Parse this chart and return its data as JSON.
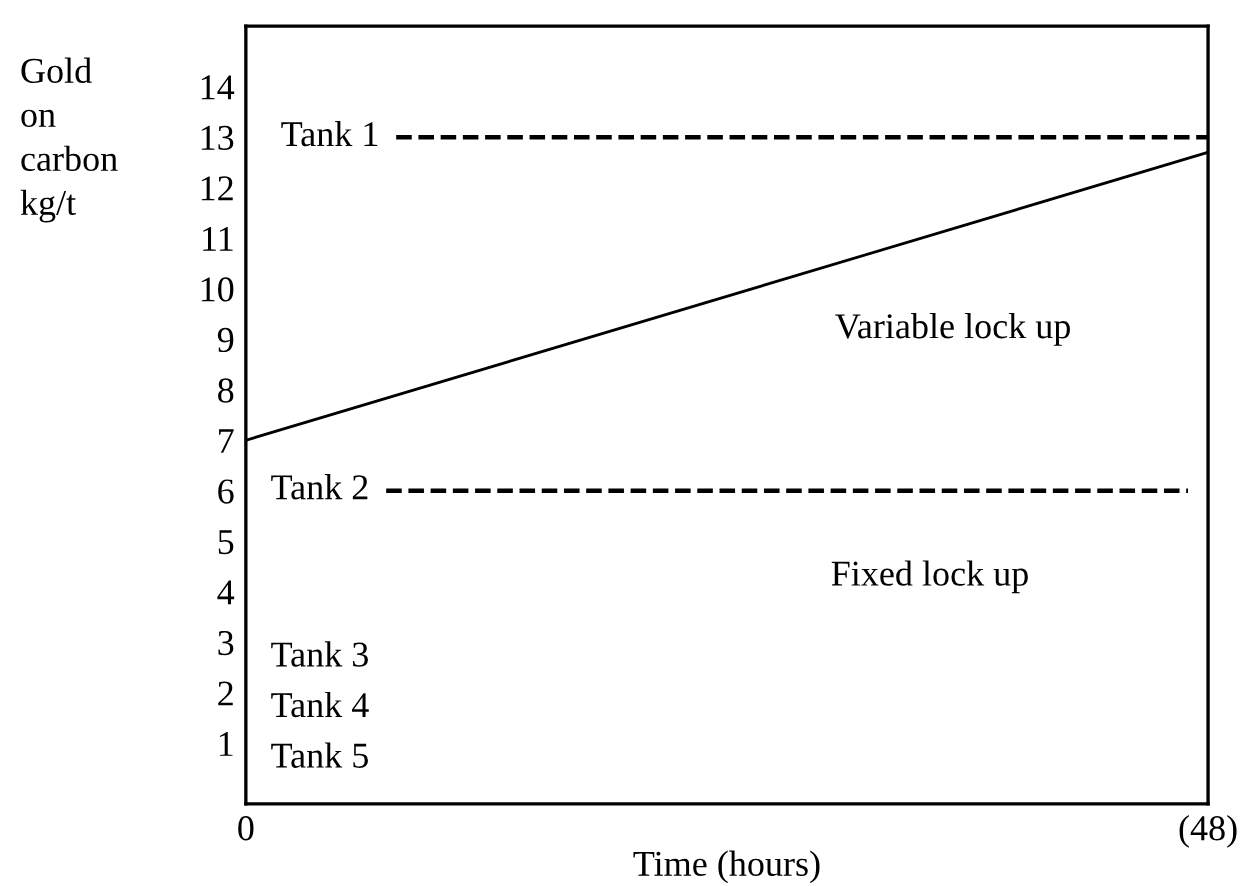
{
  "chart_data": {
    "type": "line",
    "xlabel": "Time (hours)",
    "ylabel": "Gold\non\ncarbon\nkg/t",
    "xlim": [
      0,
      48
    ],
    "xticks": [
      0,
      {
        "value": 48,
        "label": "(48)"
      }
    ],
    "ylim": [
      -0.2,
      15.2
    ],
    "yticks": [
      1,
      2,
      3,
      4,
      5,
      6,
      7,
      8,
      9,
      10,
      11,
      12,
      13,
      14
    ],
    "grid": false,
    "legend": false,
    "series": [
      {
        "color": "#000000",
        "line_style": "dashed",
        "x": [
          7.5,
          48
        ],
        "values": [
          13,
          13
        ]
      },
      {
        "color": "#000000",
        "line_style": "dashed",
        "x": [
          7,
          47
        ],
        "values": [
          6,
          6
        ]
      },
      {
        "color": "#000000",
        "line_style": "solid",
        "x": [
          0,
          48
        ],
        "values": [
          7,
          12.7
        ]
      }
    ],
    "annotations": [
      "Tank 1",
      "Tank 2",
      "Tank 3",
      "Tank 4",
      "Tank 5",
      "Variable lock up",
      "Fixed lock up"
    ]
  }
}
